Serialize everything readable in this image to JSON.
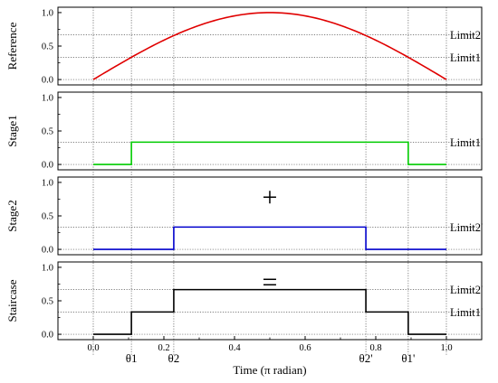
{
  "chart_data": {
    "type": "line",
    "xlabel": "Time (π radian)",
    "xlim": [
      -0.1,
      1.1
    ],
    "x_ticks": [
      "0.0",
      "0.2",
      "0.4",
      "0.6",
      "0.8",
      "1.0"
    ],
    "x_tick_values": [
      0.0,
      0.2,
      0.4,
      0.6,
      0.8,
      1.0
    ],
    "y_ticks": [
      "0.0",
      "0.5",
      "1.0"
    ],
    "y_tick_values": [
      0.0,
      0.5,
      1.0
    ],
    "ylim": [
      -0.08,
      1.08
    ],
    "grid": "dotted reference lines",
    "thresholds": {
      "theta1": 0.108,
      "theta2": 0.228,
      "theta2_prime": 0.772,
      "theta1_prime": 0.892,
      "limit1": 0.333,
      "limit2": 0.667
    },
    "theta_labels": [
      {
        "label": "θ1",
        "x": 0.108
      },
      {
        "label": "θ2",
        "x": 0.228
      },
      {
        "label": "θ2'",
        "x": 0.772
      },
      {
        "label": "θ1'",
        "x": 0.892
      }
    ],
    "panels": [
      {
        "ylabel": "Reference",
        "type": "curve",
        "color": "#e00000",
        "formula": "sin(pi*x)",
        "hlines": [
          0.333,
          0.667
        ],
        "limit_labels": [
          {
            "label": "Limit2",
            "y": 0.667
          },
          {
            "label": "Limit1",
            "y": 0.333
          }
        ],
        "operator": ""
      },
      {
        "ylabel": "Stage1",
        "type": "step",
        "color": "#00cc00",
        "x": [
          0.0,
          0.108,
          0.108,
          0.892,
          0.892,
          1.0
        ],
        "y": [
          0.0,
          0.0,
          0.333,
          0.333,
          0.0,
          0.0
        ],
        "hlines": [
          0.333
        ],
        "limit_labels": [
          {
            "label": "Limit1'",
            "y": 0.333
          }
        ],
        "operator": ""
      },
      {
        "ylabel": "Stage2",
        "type": "step",
        "color": "#0000cc",
        "x": [
          0.0,
          0.228,
          0.228,
          0.772,
          0.772,
          1.0
        ],
        "y": [
          0.0,
          0.0,
          0.333,
          0.333,
          0.0,
          0.0
        ],
        "hlines": [
          0.333
        ],
        "limit_labels": [
          {
            "label": "Limit2'",
            "y": 0.333
          }
        ],
        "operator": "+"
      },
      {
        "ylabel": "Staircase",
        "type": "step",
        "color": "#000000",
        "x": [
          0.0,
          0.108,
          0.108,
          0.228,
          0.228,
          0.772,
          0.772,
          0.892,
          0.892,
          1.0
        ],
        "y": [
          0.0,
          0.0,
          0.333,
          0.333,
          0.667,
          0.667,
          0.333,
          0.333,
          0.0,
          0.0
        ],
        "hlines": [
          0.333,
          0.667
        ],
        "limit_labels": [
          {
            "label": "Limit2'",
            "y": 0.667
          },
          {
            "label": "Limit1'",
            "y": 0.333
          }
        ],
        "operator": "="
      }
    ]
  }
}
